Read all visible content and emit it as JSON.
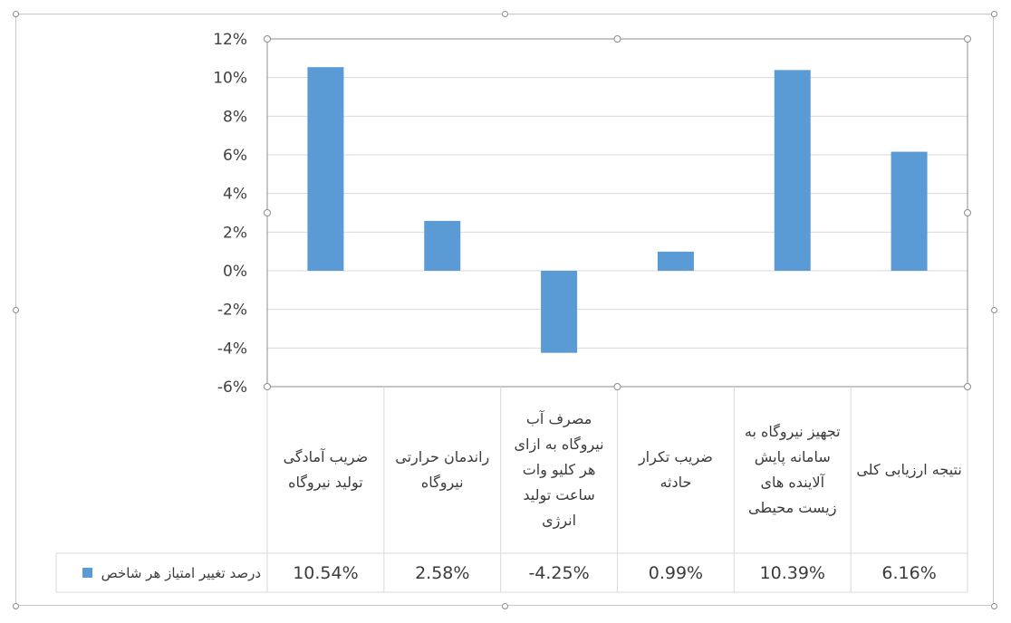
{
  "colors": {
    "bar": "#5b9bd5",
    "grid": "#d9d9d9",
    "axis": "#8c8c8c",
    "text": "#3b3b3b"
  },
  "chart_data": {
    "type": "bar",
    "categories": [
      "ضریب آمادگی تولید نیروگاه",
      "راندمان حرارتی نیروگاه",
      "مصرف آب نیروگاه به ازای هر کلیو وات ساعت تولید انرژی",
      "ضریب تکرار حادثه",
      "تجهیز نیروگاه به سامانه پایش آلاینده های زیست محیطی",
      "نتیجه ارزیابی کلی"
    ],
    "series": [
      {
        "name": "درصد تغییر امتیاز هر شاخص",
        "values": [
          10.54,
          2.58,
          -4.25,
          0.99,
          10.39,
          6.16
        ]
      }
    ],
    "value_labels": [
      "10.54%",
      "2.58%",
      "-4.25%",
      "0.99%",
      "10.39%",
      "6.16%"
    ],
    "ylim": [
      -6,
      12
    ],
    "yticks": [
      12,
      10,
      8,
      6,
      4,
      2,
      0,
      -2,
      -4,
      -6
    ],
    "ytick_labels": [
      "12%",
      "10%",
      "8%",
      "6%",
      "4%",
      "2%",
      "0%",
      "-2%",
      "-4%",
      "-6%"
    ],
    "grid": true,
    "legend": "in data table (bottom-left)",
    "xlabel": "",
    "ylabel": ""
  }
}
